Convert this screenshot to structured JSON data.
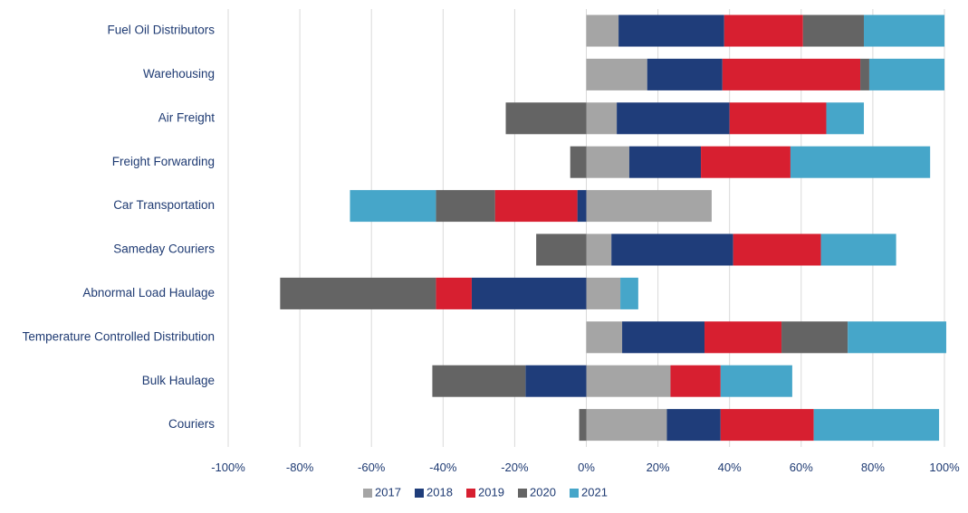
{
  "chart_data": {
    "type": "bar",
    "orientation": "horizontal",
    "stacked": "diverging",
    "categories": [
      "Fuel Oil Distributors",
      "Warehousing",
      "Air Freight",
      "Freight Forwarding",
      "Car Transportation",
      "Sameday Couriers",
      "Abnormal Load Haulage",
      "Temperature Controlled Distribution",
      "Bulk Haulage",
      "Couriers"
    ],
    "series": [
      {
        "name": "2017",
        "color": "#a5a5a5",
        "values": [
          9,
          17,
          8.5,
          12,
          35,
          7,
          9.5,
          10,
          23.5,
          22.5
        ]
      },
      {
        "name": "2018",
        "color": "#1f3d7a",
        "values": [
          29.5,
          21,
          31.5,
          20,
          -2.5,
          34,
          -32,
          23,
          -17,
          15
        ]
      },
      {
        "name": "2019",
        "color": "#d71f30",
        "values": [
          22,
          38.5,
          27,
          25,
          -23,
          24.5,
          -10,
          21.5,
          14,
          26
        ]
      },
      {
        "name": "2020",
        "color": "#646464",
        "values": [
          17,
          2.5,
          -22.5,
          -4.5,
          -16.5,
          -14,
          -43.5,
          18.5,
          -26,
          -2
        ]
      },
      {
        "name": "2021",
        "color": "#46a6c9",
        "values": [
          22.5,
          21,
          10.5,
          39,
          -24,
          21,
          5,
          27.5,
          20,
          35
        ]
      }
    ],
    "xlim": [
      -100,
      100
    ],
    "xticks": [
      "-100%",
      "-80%",
      "-60%",
      "-40%",
      "-20%",
      "0%",
      "20%",
      "40%",
      "60%",
      "80%",
      "100%"
    ],
    "xtick_values": [
      -100,
      -80,
      -60,
      -40,
      -20,
      0,
      20,
      40,
      60,
      80,
      100
    ],
    "grid": "vertical",
    "legend_position": "bottom",
    "title": "",
    "xlabel": "",
    "ylabel": ""
  }
}
